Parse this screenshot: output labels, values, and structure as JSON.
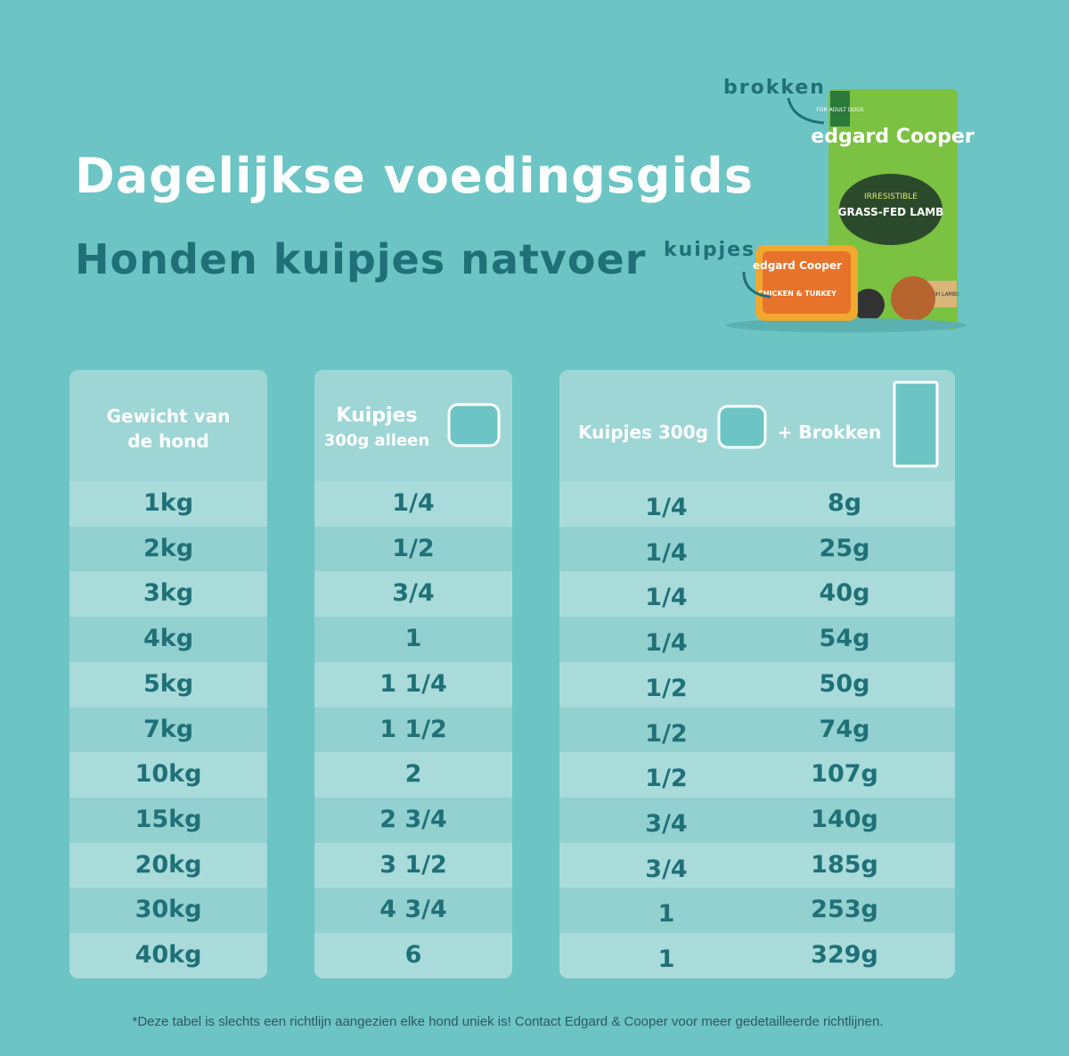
{
  "header": {
    "title": "Dagelijkse voedingsgids",
    "subtitle": "Honden kuipjes natvoer"
  },
  "products": {
    "bag_label": "brokken",
    "tub_label": "kuipjes",
    "bag_brand": "edgard Cooper",
    "bag_tag": "FOR ADULT DOGS",
    "bag_kicker": "IRRESISTIBLE",
    "bag_name": "GRASS-FED LAMB",
    "bag_badge": "FRESH LAMB!",
    "tub_brand": "edgard Cooper",
    "tub_name": "CHICKEN & TURKEY"
  },
  "table": {
    "headers": {
      "weight": [
        "Gewicht van",
        "de hond"
      ],
      "alone": [
        "Kuipjes",
        "300g alleen"
      ],
      "combo_tub": "Kuipjes 300g",
      "combo_dry": "+ Brokken"
    },
    "rows": [
      [
        "1kg",
        "1/4",
        "1/4",
        "8g"
      ],
      [
        "2kg",
        "1/2",
        "1/4",
        "25g"
      ],
      [
        "3kg",
        "3/4",
        "1/4",
        "40g"
      ],
      [
        "4kg",
        "1",
        "1/4",
        "54g"
      ],
      [
        "5kg",
        "1 1/4",
        "1/2",
        "50g"
      ],
      [
        "7kg",
        "1 1/2",
        "1/2",
        "74g"
      ],
      [
        "10kg",
        "2",
        "1/2",
        "107g"
      ],
      [
        "15kg",
        "2 3/4",
        "3/4",
        "140g"
      ],
      [
        "20kg",
        "3 1/2",
        "3/4",
        "185g"
      ],
      [
        "30kg",
        "4 3/4",
        "1",
        "253g"
      ],
      [
        "40kg",
        "6",
        "1",
        "329g"
      ]
    ]
  },
  "footnote": "*Deze tabel is slechts een richtlijn aangezien elke hond uniek is! Contact Edgard & Cooper voor meer gedetailleerde richtlijnen."
}
